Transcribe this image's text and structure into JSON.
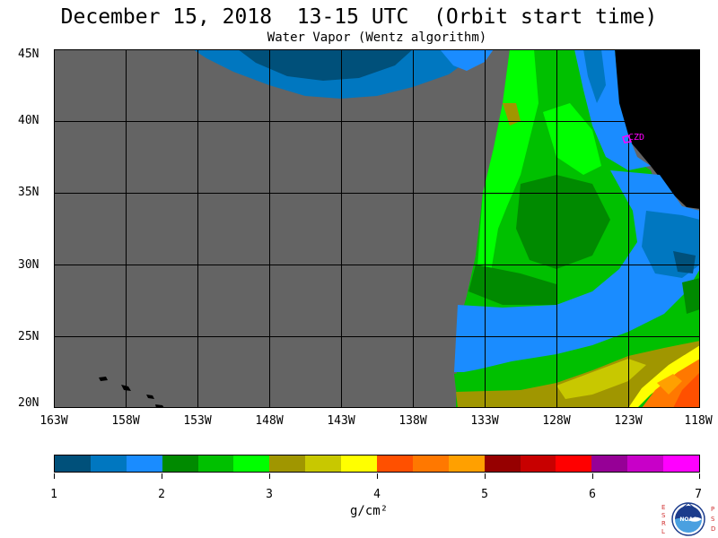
{
  "title": "December 15, 2018  13-15 UTC  (Orbit start time)",
  "subtitle": "Water Vapor (Wentz algorithm)",
  "lat_labels": [
    "45N",
    "40N",
    "35N",
    "30N",
    "25N",
    "20N"
  ],
  "lon_labels": [
    "163W",
    "158W",
    "153W",
    "148W",
    "143W",
    "138W",
    "133W",
    "128W",
    "123W",
    "118W"
  ],
  "station_label": "CZD",
  "colorbar": {
    "colors": [
      "#00507a",
      "#0077c0",
      "#1a8cff",
      "#008a00",
      "#00c000",
      "#00ff00",
      "#a09600",
      "#c8c800",
      "#ffff00",
      "#ff5000",
      "#ff7800",
      "#ffa000",
      "#960000",
      "#c80000",
      "#ff0000",
      "#960096",
      "#c800c8",
      "#ff00ff"
    ],
    "labels": [
      "1",
      "2",
      "3",
      "4",
      "5",
      "6",
      "7"
    ]
  },
  "units": "g/cm²",
  "logo_letters_left": "ESRL",
  "logo_letters_right": "PSD",
  "logo_center": "NOAA"
}
